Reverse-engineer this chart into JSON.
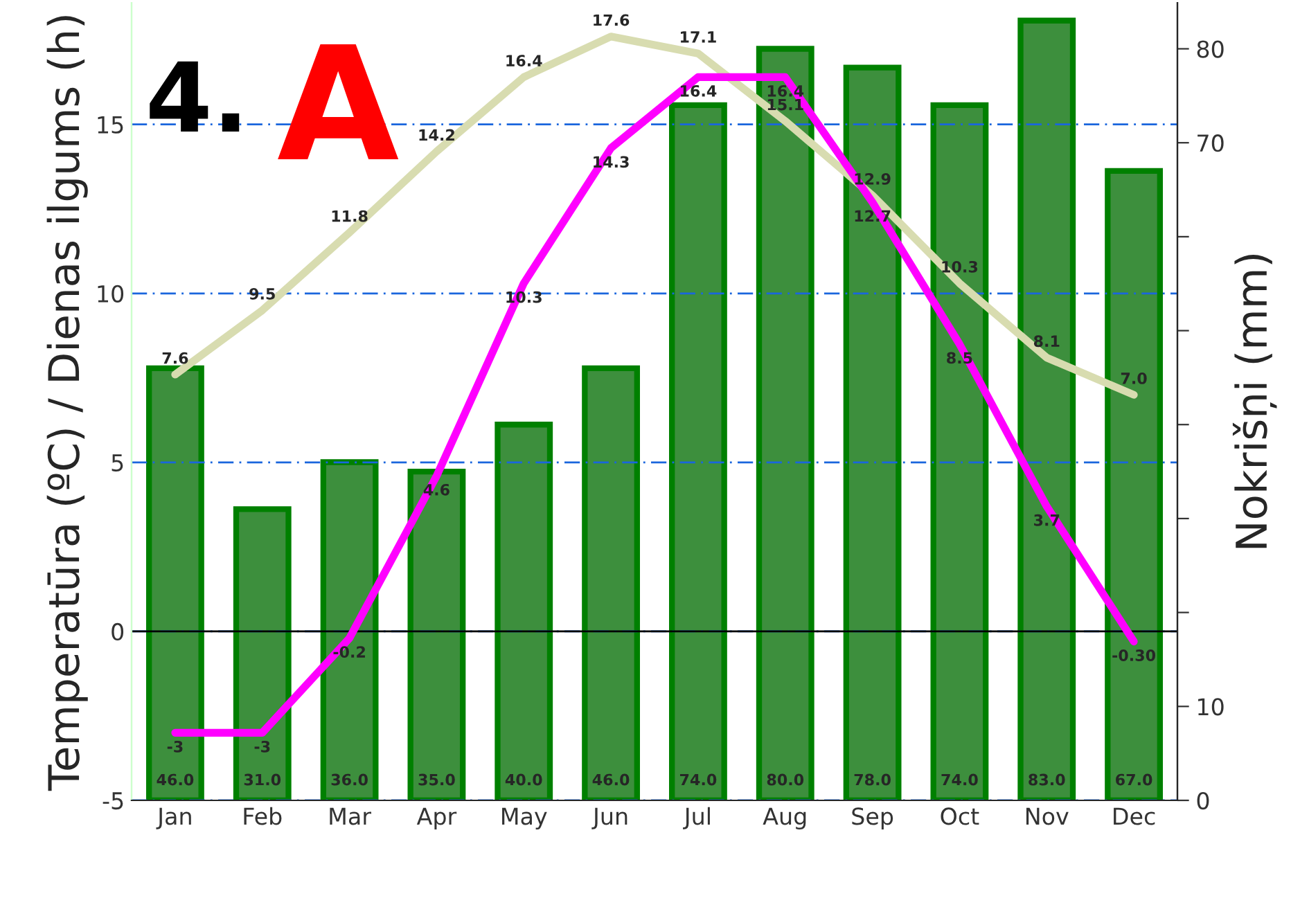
{
  "chart_data": {
    "type": "bar",
    "annotations": [
      "4.",
      "A"
    ],
    "ylabel": "Temperatūra (ºC) / Dienas ilgums (h)",
    "y2label": "Nokrišņi (mm)",
    "categories": [
      "Jan",
      "Feb",
      "Mar",
      "Apr",
      "May",
      "Jun",
      "Jul",
      "Aug",
      "Sep",
      "Oct",
      "Nov",
      "Dec"
    ],
    "series": [
      {
        "axis": "y2",
        "color": "#3d8f3d",
        "values": [
          46,
          31,
          36,
          35,
          40,
          46,
          74,
          80,
          78,
          74,
          83,
          67
        ],
        "value_labels": [
          "46.0",
          "31.0",
          "36.0",
          "35.0",
          "40.0",
          "46.0",
          "74.0",
          "80.0",
          "78.0",
          "74.0",
          "83.0",
          "67.0"
        ]
      },
      {
        "type": "line",
        "color": "#d8dcb0",
        "values": [
          7.6,
          9.5,
          11.8,
          14.2,
          16.4,
          17.6,
          17.1,
          15.1,
          12.9,
          10.3,
          8.1,
          7.0
        ],
        "value_labels": [
          "7.6",
          "9.5",
          "11.8",
          "14.2",
          "16.4",
          "17.6",
          "17.1",
          "15.1",
          "12.9",
          "10.3",
          "8.1",
          "7.0"
        ]
      },
      {
        "type": "line",
        "color": "#ff00ff",
        "values": [
          -3,
          -3,
          -0.2,
          4.6,
          10.3,
          14.3,
          16.4,
          16.4,
          12.7,
          8.5,
          3.7,
          -0.3
        ],
        "value_labels": [
          "-3",
          "-3",
          "-0.2",
          "4.6",
          "10.3",
          "14.3",
          "16.4",
          "16.4",
          "12.7",
          "8.5",
          "3.7",
          "-0.30"
        ]
      }
    ],
    "ylim": [
      -5,
      18.6
    ],
    "yticks": [
      -5,
      0,
      5,
      10,
      15
    ],
    "y2lim": [
      0,
      84.9
    ],
    "y2ticks": [
      0,
      10,
      {
        "value": 20,
        "label": null
      },
      {
        "value": 30,
        "label": null
      },
      {
        "value": 40,
        "label": null
      },
      {
        "value": 50,
        "label": null
      },
      {
        "value": 60,
        "label": null
      },
      70,
      80
    ],
    "grid": "y",
    "legend": false,
    "data_labels": true,
    "line_style": "solid",
    "marker": "none"
  }
}
